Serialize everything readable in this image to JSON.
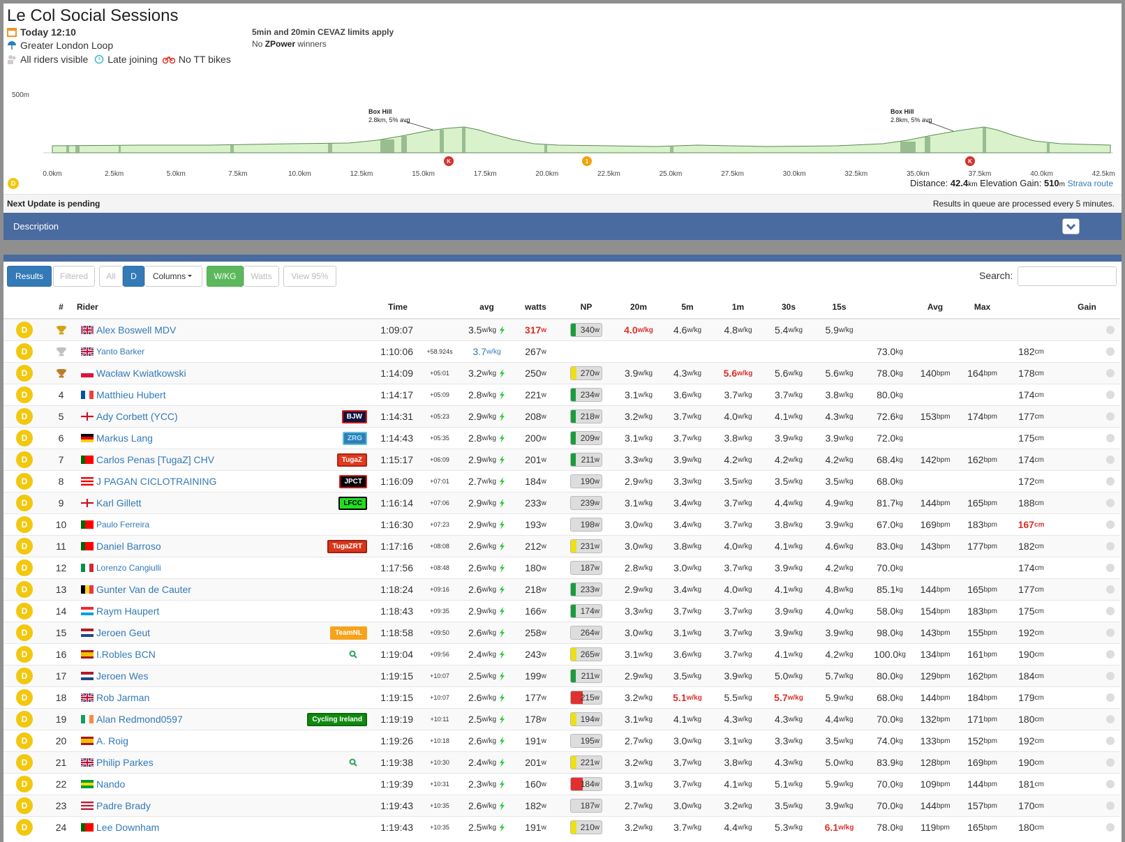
{
  "header": {
    "title": "Le Col Social Sessions",
    "date": "Today 12:10",
    "route": "Greater London Loop",
    "options": [
      "All riders visible",
      "Late joining",
      "No TT bikes"
    ],
    "rule1": "5min and 20min CEVAZ limits apply",
    "rule2": [
      "No",
      "ZPower",
      "winners"
    ]
  },
  "profile": {
    "ylabel": "500m",
    "climbs": [
      {
        "name": "Box Hill",
        "detail": "2.8km, 5% avg"
      },
      {
        "name": "Box Hill",
        "detail": "2.8km, 5% avg"
      }
    ],
    "markers": [
      "K",
      "1",
      "K"
    ],
    "start": "D",
    "xlabels": [
      "0.0km",
      "2.5km",
      "5.0km",
      "7.5km",
      "10.0km",
      "12.5km",
      "15.0km",
      "17.5km",
      "20.0km",
      "22.5km",
      "25.0km",
      "27.5km",
      "30.0km",
      "32.5km",
      "35.0km",
      "37.5km",
      "40.0km",
      "42.5km"
    ],
    "distance_label": "Distance:",
    "distance": "42.4",
    "distance_unit": "km",
    "gain_label": "Elevation Gain:",
    "gain": "510",
    "gain_unit": "m",
    "link": "Strava route"
  },
  "status": {
    "left": "Next Update is pending",
    "right": "Results in queue are processed every 5 minutes."
  },
  "description": "Description",
  "toolbar": {
    "buttons": [
      "Results",
      "Filtered",
      "All",
      "D",
      "Columns",
      "W/KG",
      "Watts",
      "View 95%"
    ],
    "search": "Search:"
  },
  "table": {
    "headers": [
      null,
      "#",
      "Rider",
      "Time",
      null,
      "avg",
      "watts",
      "NP",
      "20m",
      "5m",
      "1m",
      "30s",
      "15s",
      null,
      "Avg",
      "Max",
      null,
      "Gain"
    ],
    "units": {
      "wkg": "w/kg",
      "w": "w",
      "kg": "kg",
      "bpm": "bpm",
      "cm": "cm"
    },
    "rows": [
      {
        "cat": "D",
        "trophy": "#d4a21a",
        "name": "Alex Boswell MDV",
        "flag": {
          "dir": "cross",
          "colors": [
            "#012169",
            "#ffffff",
            "#c8102e"
          ]
        },
        "c": [
          "1:09:07",
          null,
          "3.5",
          "317",
          "340",
          "4.0",
          "4.6",
          "4.8",
          "5.4",
          "5.9",
          null,
          null,
          null,
          null
        ],
        "np": "green",
        "red": [
          3,
          5
        ]
      },
      {
        "cat": "D",
        "trophy": "#c0c0c0",
        "name": "Yanto Barker",
        "small": true,
        "flag": {
          "dir": "cross",
          "colors": [
            "#012169",
            "#ffffff",
            "#c8102e"
          ]
        },
        "c": [
          "1:10:06",
          "+58.924s",
          "3.7",
          "267",
          null,
          null,
          null,
          null,
          null,
          null,
          "73.0",
          null,
          null,
          "182"
        ],
        "blue": [
          2
        ]
      },
      {
        "cat": "D",
        "trophy": "#c07a2c",
        "name": "Wacław Kwiatkowski",
        "flag": {
          "dir": "h",
          "colors": [
            "#ffffff",
            "#dc143c"
          ]
        },
        "c": [
          "1:14:09",
          "+05:01",
          "3.2",
          "250",
          "270",
          "3.9",
          "4.3",
          "5.6",
          "5.6",
          "5.6",
          "78.0",
          "140",
          "164",
          "178"
        ],
        "np": "yellow",
        "red": [
          7
        ]
      },
      {
        "cat": "D",
        "pos": 4,
        "name": "Matthieu Hubert",
        "flag": {
          "dir": "v",
          "colors": [
            "#0055a4",
            "#ffffff",
            "#ef4135"
          ]
        },
        "c": [
          "1:14:17",
          "+05:09",
          "2.8",
          "221",
          "234",
          "3.1",
          "3.6",
          "3.7",
          "3.7",
          "3.8",
          "80.0",
          null,
          null,
          "174"
        ],
        "np": "green"
      },
      {
        "cat": "D",
        "pos": 5,
        "name": "Ady Corbett (YCC)",
        "flag": {
          "dir": "cross",
          "colors": [
            "#ffffff",
            "#ffffff",
            "#ce1124"
          ]
        },
        "team": {
          "label": "BJW",
          "bg": "#14143c",
          "fg": "#ffffff",
          "border": "#d01c1c"
        },
        "c": [
          "1:14:31",
          "+05:23",
          "2.9",
          "208",
          "218",
          "3.2",
          "3.7",
          "4.0",
          "4.1",
          "4.3",
          "72.6",
          "153",
          "174",
          "177"
        ],
        "np": "green"
      },
      {
        "cat": "D",
        "pos": 6,
        "name": "Markus Lang",
        "flag": {
          "dir": "h",
          "colors": [
            "#000000",
            "#dd0000",
            "#ffce00"
          ]
        },
        "team": {
          "label": "ZRG",
          "bg": "#2f7fb5",
          "fg": "#a8e6ff",
          "border": "#5bc0de"
        },
        "c": [
          "1:14:43",
          "+05:35",
          "2.8",
          "200",
          "209",
          "3.1",
          "3.7",
          "3.8",
          "3.9",
          "3.9",
          "72.0",
          null,
          null,
          "175"
        ],
        "np": "green"
      },
      {
        "cat": "D",
        "pos": 7,
        "name": "Carlos Penas [TugaZ] CHV",
        "flag": {
          "dir": "v",
          "colors": [
            "#006600",
            "#ff0000",
            "#ff0000"
          ]
        },
        "team": {
          "label": "TugaZ",
          "bg": "#e03a1e",
          "fg": "#ffffff",
          "border": "#b02010"
        },
        "c": [
          "1:15:17",
          "+06:09",
          "2.9",
          "201",
          "211",
          "3.3",
          "3.9",
          "4.2",
          "4.2",
          "4.2",
          "68.4",
          "142",
          "162",
          "174"
        ],
        "np": "green"
      },
      {
        "cat": "D",
        "pos": 8,
        "name": "J PAGAN CICLOTRAINING",
        "flag": {
          "dir": "h",
          "colors": [
            "#ed0000",
            "#ffffff",
            "#ed0000",
            "#ffffff",
            "#ed0000"
          ]
        },
        "team": {
          "label": "JPCT",
          "bg": "#000000",
          "fg": "#ffffff",
          "border": "#d01c1c"
        },
        "c": [
          "1:16:09",
          "+07:01",
          "2.7",
          "184",
          "190",
          "2.9",
          "3.3",
          "3.5",
          "3.5",
          "3.5",
          "68.0",
          null,
          null,
          "172"
        ]
      },
      {
        "cat": "D",
        "pos": 9,
        "name": "Karl Gillett",
        "flag": {
          "dir": "cross",
          "colors": [
            "#ffffff",
            "#ffffff",
            "#ce1124"
          ]
        },
        "team": {
          "label": "LFCC",
          "bg": "#22dd22",
          "fg": "#000000",
          "border": "#000000"
        },
        "c": [
          "1:16:14",
          "+07:06",
          "2.9",
          "233",
          "239",
          "3.1",
          "3.4",
          "3.7",
          "4.4",
          "4.9",
          "81.7",
          "144",
          "165",
          "188"
        ]
      },
      {
        "cat": "D",
        "pos": 10,
        "name": "Paulo Ferreira",
        "small": true,
        "flag": {
          "dir": "v",
          "colors": [
            "#006600",
            "#ff0000",
            "#ff0000"
          ]
        },
        "c": [
          "1:16:30",
          "+07:23",
          "2.9",
          "193",
          "198",
          "3.0",
          "3.4",
          "3.7",
          "3.8",
          "3.9",
          "67.0",
          "169",
          "183",
          "167"
        ],
        "red": [
          13
        ]
      },
      {
        "cat": "D",
        "pos": 11,
        "name": "Daniel Barroso",
        "flag": {
          "dir": "v",
          "colors": [
            "#006600",
            "#ff0000",
            "#ff0000"
          ]
        },
        "team": {
          "label": "TugaZRT",
          "bg": "#d9361c",
          "fg": "#ffffff",
          "border": "#a0200f"
        },
        "c": [
          "1:17:16",
          "+08:08",
          "2.6",
          "212",
          "231",
          "3.0",
          "3.8",
          "4.0",
          "4.1",
          "4.6",
          "83.0",
          "143",
          "177",
          "182"
        ],
        "np": "yellow"
      },
      {
        "cat": "D",
        "pos": 12,
        "name": "Lorenzo Cangiulli",
        "small": true,
        "flag": {
          "dir": "v",
          "colors": [
            "#009246",
            "#ffffff",
            "#ce2b37"
          ]
        },
        "c": [
          "1:17:56",
          "+08:48",
          "2.6",
          "180",
          "187",
          "2.8",
          "3.0",
          "3.7",
          "3.9",
          "4.2",
          "70.0",
          null,
          null,
          "174"
        ]
      },
      {
        "cat": "D",
        "pos": 13,
        "name": "Gunter Van de Cauter",
        "flag": {
          "dir": "v",
          "colors": [
            "#000000",
            "#fdda24",
            "#ef3340"
          ]
        },
        "c": [
          "1:18:24",
          "+09:16",
          "2.6",
          "218",
          "233",
          "2.9",
          "3.4",
          "4.0",
          "4.1",
          "4.8",
          "85.1",
          "144",
          "165",
          "177"
        ],
        "np": "green"
      },
      {
        "cat": "D",
        "pos": 14,
        "name": "Raym Haupert",
        "flag": {
          "dir": "h",
          "colors": [
            "#ed2939",
            "#ffffff",
            "#00a1de"
          ]
        },
        "c": [
          "1:18:43",
          "+09:35",
          "2.9",
          "166",
          "174",
          "3.3",
          "3.7",
          "3.7",
          "3.9",
          "4.0",
          "58.0",
          "154",
          "183",
          "175"
        ],
        "np": "green"
      },
      {
        "cat": "D",
        "pos": 15,
        "name": "Jeroen Geut",
        "flag": {
          "dir": "h",
          "colors": [
            "#ae1c28",
            "#ffffff",
            "#21468b"
          ]
        },
        "team": {
          "label": "TeamNL",
          "bg": "#f7a21b",
          "fg": "#ffffff",
          "border": "#f7a21b"
        },
        "c": [
          "1:18:58",
          "+09:50",
          "2.6",
          "258",
          "264",
          "3.0",
          "3.1",
          "3.7",
          "3.9",
          "3.9",
          "98.0",
          "143",
          "155",
          "192"
        ]
      },
      {
        "cat": "D",
        "pos": 16,
        "name": "I.Robles BCN",
        "search": true,
        "flag": {
          "dir": "h",
          "colors": [
            "#aa151b",
            "#f1bf00",
            "#f1bf00",
            "#aa151b"
          ]
        },
        "c": [
          "1:19:04",
          "+09:56",
          "2.4",
          "243",
          "265",
          "3.1",
          "3.6",
          "3.7",
          "4.1",
          "4.2",
          "100.0",
          "134",
          "161",
          "190"
        ],
        "np": "yellow"
      },
      {
        "cat": "D",
        "pos": 17,
        "name": "Jeroen Wes",
        "flag": {
          "dir": "h",
          "colors": [
            "#ae1c28",
            "#ffffff",
            "#21468b"
          ]
        },
        "c": [
          "1:19:15",
          "+10:07",
          "2.5",
          "199",
          "211",
          "2.9",
          "3.5",
          "3.9",
          "5.0",
          "5.7",
          "80.0",
          "129",
          "162",
          "184"
        ],
        "np": "green"
      },
      {
        "cat": "D",
        "pos": 18,
        "name": "Rob Jarman",
        "flag": {
          "dir": "cross",
          "colors": [
            "#012169",
            "#ffffff",
            "#c8102e"
          ]
        },
        "c": [
          "1:19:15",
          "+10:07",
          "2.6",
          "177",
          "215",
          "3.2",
          "5.1",
          "5.5",
          "5.7",
          "5.9",
          "68.0",
          "144",
          "184",
          "179"
        ],
        "np": "red",
        "red": [
          6,
          8
        ]
      },
      {
        "cat": "D",
        "pos": 19,
        "name": "Alan Redmond0597",
        "flag": {
          "dir": "v",
          "colors": [
            "#169b62",
            "#ffffff",
            "#ff883e"
          ]
        },
        "team": {
          "label": "Cycling Ireland",
          "bg": "#118a11",
          "fg": "#ffffff",
          "border": "#0a6a0a"
        },
        "c": [
          "1:19:19",
          "+10:11",
          "2.5",
          "178",
          "194",
          "3.1",
          "4.1",
          "4.3",
          "4.3",
          "4.4",
          "70.0",
          "132",
          "171",
          "180"
        ],
        "np": "yellow"
      },
      {
        "cat": "D",
        "pos": 20,
        "name": "A. Roig",
        "flag": {
          "dir": "h",
          "colors": [
            "#aa151b",
            "#f1bf00",
            "#f1bf00",
            "#aa151b"
          ]
        },
        "c": [
          "1:19:26",
          "+10:18",
          "2.6",
          "191",
          "195",
          "2.7",
          "3.0",
          "3.1",
          "3.3",
          "3.5",
          "74.0",
          "133",
          "152",
          "192"
        ]
      },
      {
        "cat": "D",
        "pos": 21,
        "name": "Philip Parkes",
        "search": true,
        "flag": {
          "dir": "cross",
          "colors": [
            "#012169",
            "#ffffff",
            "#c8102e"
          ]
        },
        "c": [
          "1:19:38",
          "+10:30",
          "2.4",
          "201",
          "221",
          "3.2",
          "3.7",
          "3.8",
          "4.3",
          "5.0",
          "83.9",
          "128",
          "169",
          "190"
        ],
        "np": "yellow"
      },
      {
        "cat": "D",
        "pos": 22,
        "name": "Nando",
        "flag": {
          "dir": "h",
          "colors": [
            "#009c3b",
            "#ffdf00",
            "#009c3b"
          ]
        },
        "c": [
          "1:19:39",
          "+10:31",
          "2.3",
          "160",
          "184",
          "3.1",
          "3.7",
          "4.1",
          "5.1",
          "5.9",
          "70.0",
          "109",
          "144",
          "181"
        ],
        "np": "red"
      },
      {
        "cat": "D",
        "pos": 23,
        "name": "Padre Brady",
        "flag": {
          "dir": "h",
          "colors": [
            "#b22234",
            "#ffffff",
            "#b22234",
            "#ffffff",
            "#b22234"
          ]
        },
        "c": [
          "1:19:43",
          "+10:35",
          "2.6",
          "182",
          "187",
          "2.7",
          "3.0",
          "3.2",
          "3.5",
          "3.9",
          "70.0",
          "144",
          "157",
          "170"
        ]
      },
      {
        "cat": "D",
        "pos": 24,
        "name": "Lee Downham",
        "flag": {
          "dir": "v",
          "colors": [
            "#006600",
            "#ff0000",
            "#ff0000"
          ]
        },
        "c": [
          "1:19:43",
          "+10:35",
          "2.5",
          "191",
          "210",
          "3.2",
          "3.7",
          "4.4",
          "5.3",
          "6.1",
          "78.0",
          "119",
          "165",
          "180"
        ],
        "np": "yellow",
        "red": [
          9
        ]
      }
    ]
  }
}
